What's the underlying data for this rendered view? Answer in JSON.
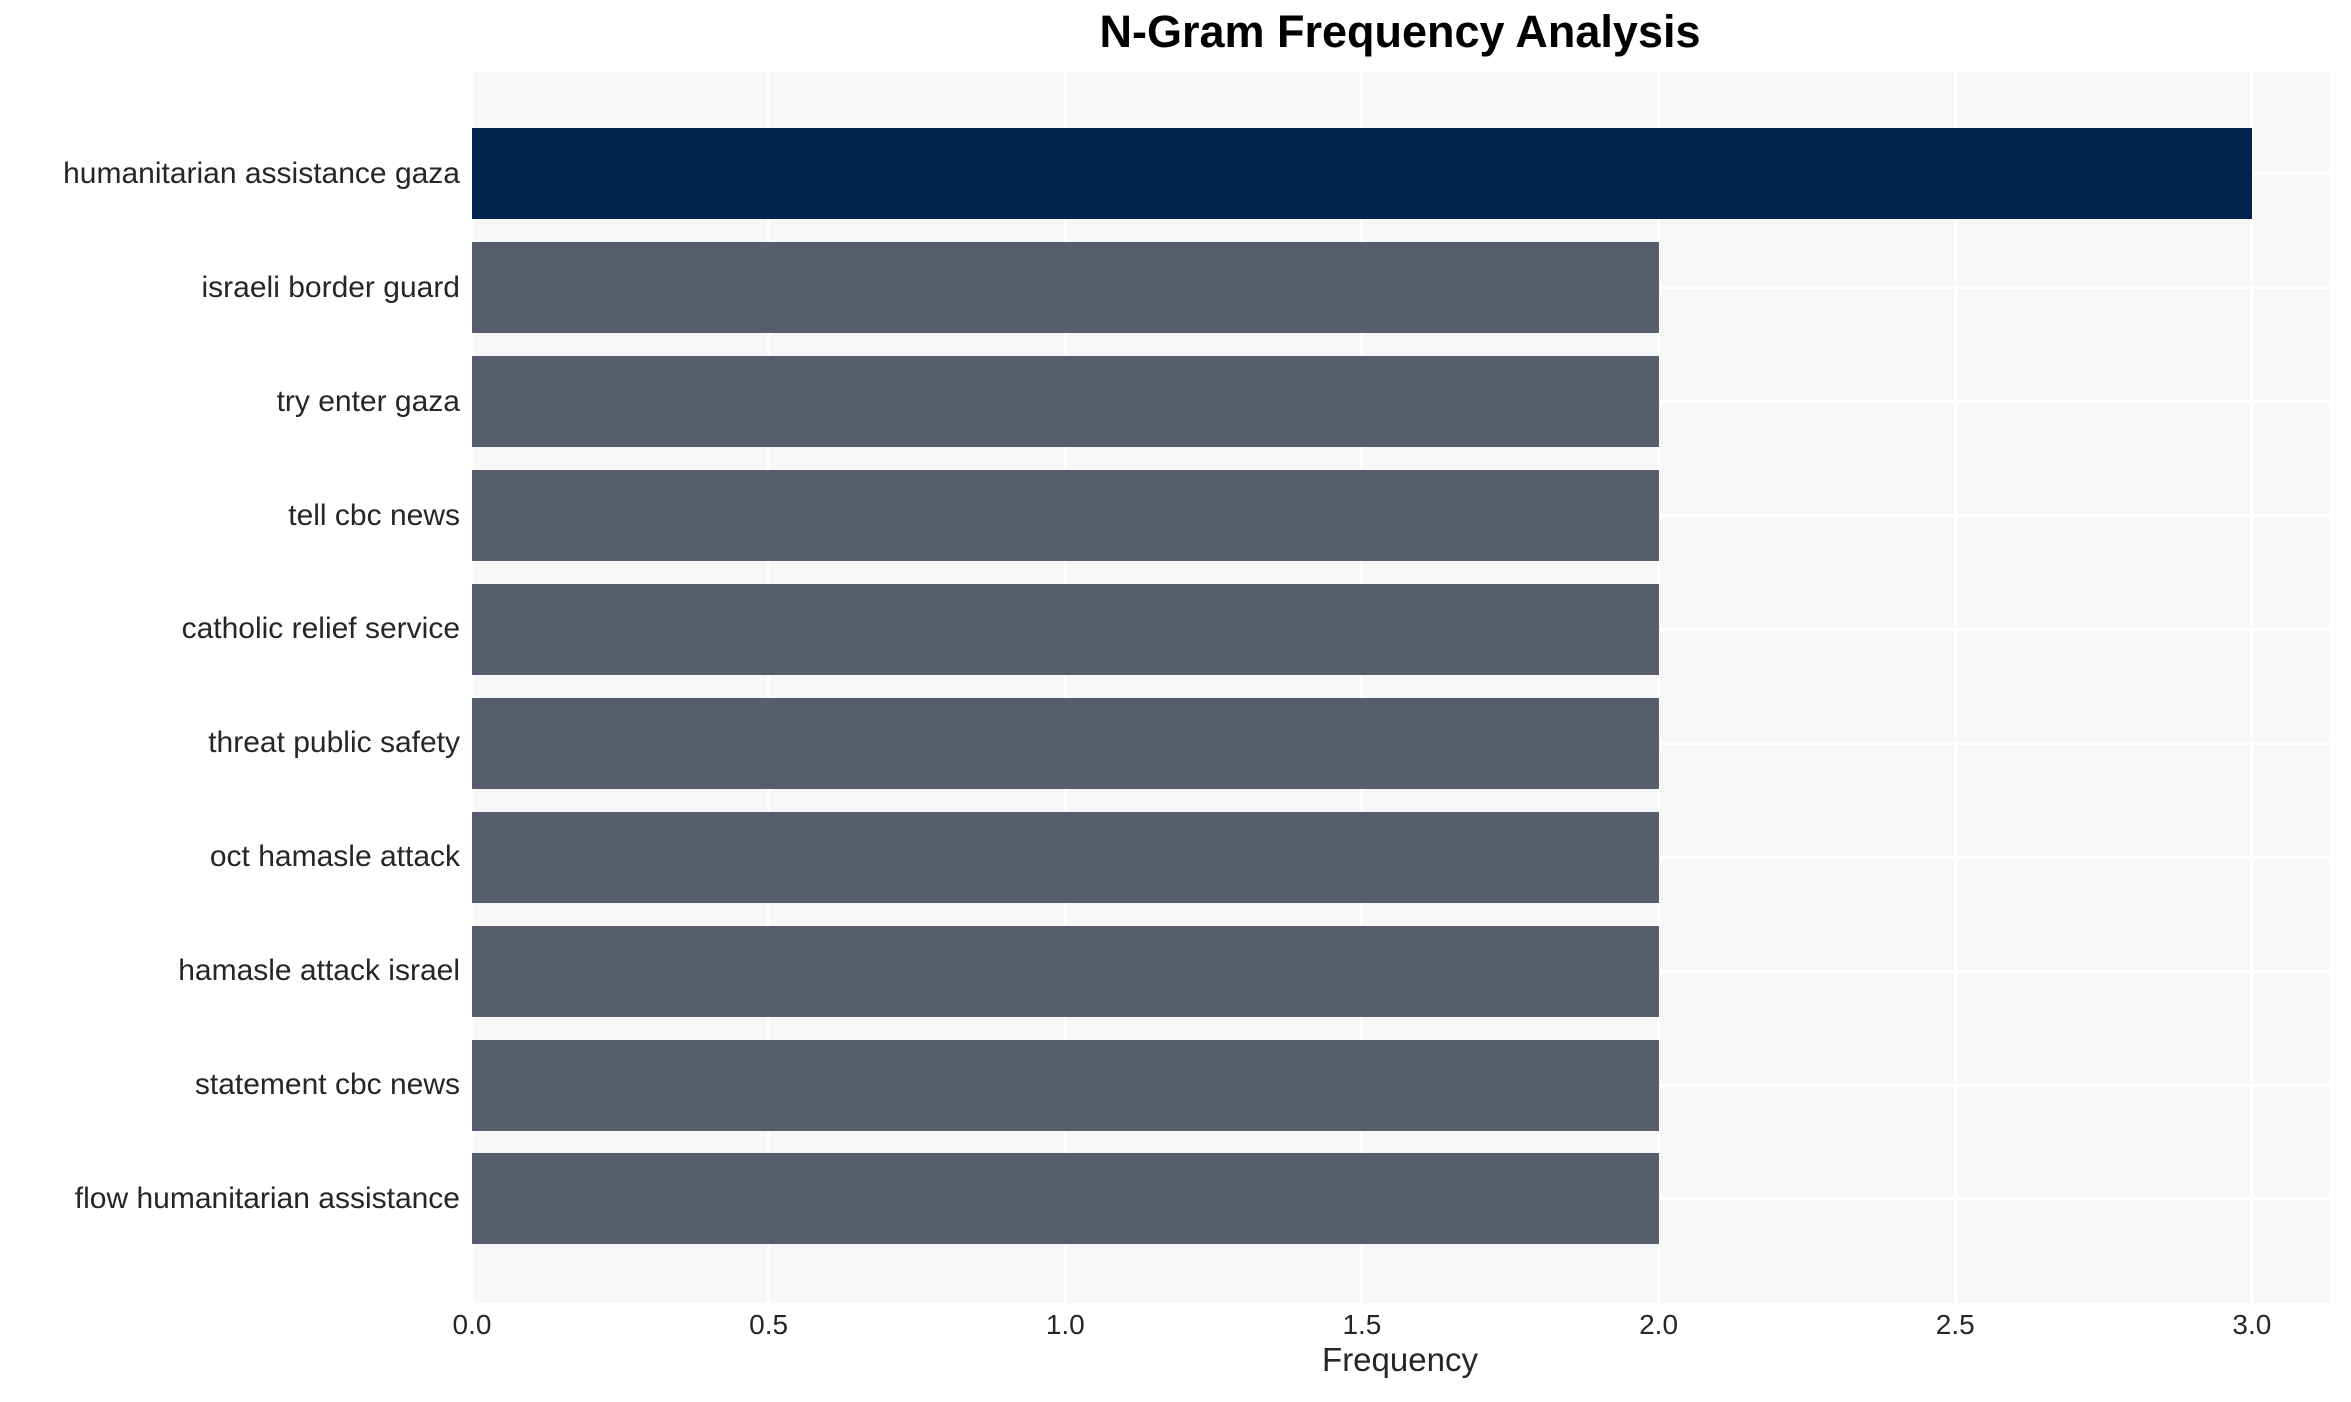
{
  "chart_data": {
    "type": "bar",
    "orientation": "horizontal",
    "title": "N-Gram Frequency Analysis",
    "xlabel": "Frequency",
    "ylabel": "",
    "categories": [
      "humanitarian assistance gaza",
      "israeli border guard",
      "try enter gaza",
      "tell cbc news",
      "catholic relief service",
      "threat public safety",
      "oct hamasle attack",
      "hamasle attack israel",
      "statement cbc news",
      "flow humanitarian assistance"
    ],
    "values": [
      3,
      2,
      2,
      2,
      2,
      2,
      2,
      2,
      2,
      2
    ],
    "bar_colors": [
      "#00244E",
      "#575D6C",
      "#575D6C",
      "#575D6C",
      "#575D6C",
      "#575D6C",
      "#575D6C",
      "#575D6C",
      "#575D6C",
      "#575D6C"
    ],
    "xticks": [
      0,
      0.5,
      1,
      1.5,
      2,
      2.5,
      3
    ],
    "xtick_labels": [
      "0.0",
      "0.5",
      "1.0",
      "1.5",
      "2.0",
      "2.5",
      "3.0"
    ],
    "xlim": [
      0,
      3.13
    ],
    "grid": true,
    "legend": false,
    "colors": {
      "highlight_bar": "#00244E",
      "bar": "#575D6C",
      "plot_background": "#F7F7F7",
      "grid_line": "#FFFFFF",
      "title_text": "#000000",
      "axis_text": "#262626",
      "page_background": "#FFFFFF"
    }
  }
}
